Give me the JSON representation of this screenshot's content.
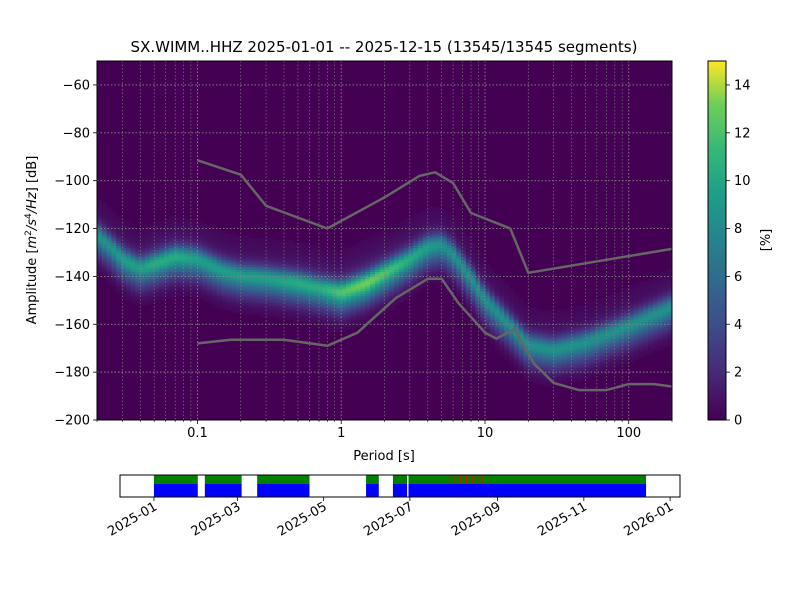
{
  "chart_data": [
    {
      "type": "heatmap",
      "title": "SX.WIMM..HHZ   2025-01-01 -- 2025-12-15  (13545/13545 segments)",
      "xlabel": "Period [s]",
      "ylabel_parts": [
        "Amplitude [",
        "m",
        "2",
        "/s",
        "4",
        "/Hz",
        "] [dB]"
      ],
      "x_scale": "log",
      "xlim": [
        0.02,
        200
      ],
      "ylim": [
        -200,
        -50
      ],
      "x_ticks": [
        {
          "value": 0.1,
          "label": "0.1"
        },
        {
          "value": 1,
          "label": "1"
        },
        {
          "value": 10,
          "label": "10"
        },
        {
          "value": 100,
          "label": "100"
        }
      ],
      "y_ticks": [
        {
          "value": -60,
          "label": "−60"
        },
        {
          "value": -80,
          "label": "−80"
        },
        {
          "value": -100,
          "label": "−100"
        },
        {
          "value": -120,
          "label": "−120"
        },
        {
          "value": -140,
          "label": "−140"
        },
        {
          "value": -160,
          "label": "−160"
        },
        {
          "value": -180,
          "label": "−180"
        },
        {
          "value": -200,
          "label": "−200"
        }
      ],
      "grid": true,
      "colormap": "viridis",
      "colorbar": {
        "label": "[%]",
        "range": [
          0,
          15
        ],
        "ticks": [
          {
            "value": 0,
            "label": "0"
          },
          {
            "value": 2,
            "label": "2"
          },
          {
            "value": 4,
            "label": "4"
          },
          {
            "value": 6,
            "label": "6"
          },
          {
            "value": 8,
            "label": "8"
          },
          {
            "value": 10,
            "label": "10"
          },
          {
            "value": 12,
            "label": "12"
          },
          {
            "value": 14,
            "label": "14"
          }
        ]
      },
      "density_mode": {
        "period": [
          0.02,
          0.025,
          0.03,
          0.04,
          0.05,
          0.07,
          0.1,
          0.15,
          0.2,
          0.3,
          0.5,
          0.7,
          1.0,
          1.5,
          2.0,
          3.0,
          4.0,
          5.0,
          6.0,
          8.0,
          10,
          15,
          20,
          30,
          50,
          100,
          200
        ],
        "amplitude": [
          -122,
          -127,
          -132,
          -136,
          -134,
          -131,
          -132,
          -137,
          -139,
          -140,
          -142,
          -144,
          -146,
          -142,
          -138,
          -132,
          -127,
          -126,
          -130,
          -140,
          -149,
          -160,
          -168,
          -170,
          -167,
          -160,
          -152
        ],
        "peak_percent": [
          9,
          9,
          10,
          10,
          11,
          11,
          10,
          10,
          10,
          10,
          11,
          11,
          13,
          14,
          13,
          11,
          10,
          9,
          9,
          9,
          9,
          9,
          9,
          9,
          9,
          9,
          9
        ]
      },
      "series": [
        {
          "name": "",
          "color": "#666666",
          "x": [
            0.1,
            0.2,
            0.3,
            0.8,
            2.0,
            3.5,
            4.5,
            6.0,
            8.0,
            15,
            20,
            200
          ],
          "y": [
            -91.5,
            -97.5,
            -110.5,
            -120,
            -107,
            -98,
            -96.5,
            -101,
            -113.5,
            -120,
            -138.5,
            -128.5
          ]
        },
        {
          "name": "",
          "color": "#666666",
          "x": [
            0.1,
            0.17,
            0.4,
            0.8,
            1.3,
            2.4,
            4.0,
            5.0,
            6.5,
            10,
            12,
            16,
            22,
            30,
            45,
            70,
            100,
            150,
            200
          ],
          "y": [
            -168,
            -166.5,
            -166.5,
            -169,
            -163.5,
            -149,
            -141,
            -141,
            -151,
            -163.5,
            -166,
            -162,
            -176.5,
            -184.5,
            -187.5,
            -187.5,
            -185,
            -185,
            -186
          ]
        }
      ]
    },
    {
      "type": "timeline",
      "x_ticks": [
        {
          "date": "2025-01-01",
          "label": "2025-01"
        },
        {
          "date": "2025-03-01",
          "label": "2025-03"
        },
        {
          "date": "2025-05-01",
          "label": "2025-05"
        },
        {
          "date": "2025-07-01",
          "label": "2025-07"
        },
        {
          "date": "2025-09-01",
          "label": "2025-09"
        },
        {
          "date": "2025-11-01",
          "label": "2025-11"
        },
        {
          "date": "2026-01-01",
          "label": "2026-01"
        }
      ],
      "xlim": [
        "2024-12-08",
        "2026-01-08"
      ],
      "colors": {
        "data": "#0000ff",
        "used": "#008000",
        "gap": "#ff0000"
      },
      "data_spans": [
        [
          "2025-01-01",
          "2025-02-01"
        ],
        [
          "2025-02-06",
          "2025-03-04"
        ],
        [
          "2025-03-15",
          "2025-04-21"
        ],
        [
          "2025-05-31",
          "2025-06-09"
        ],
        [
          "2025-06-19",
          "2025-06-29"
        ],
        [
          "2025-06-30",
          "2025-12-15"
        ]
      ],
      "gap_markers": [
        "2025-07-29",
        "2025-08-02",
        "2025-08-06",
        "2025-08-10",
        "2025-08-14",
        "2025-08-18",
        "2025-08-21"
      ]
    }
  ]
}
